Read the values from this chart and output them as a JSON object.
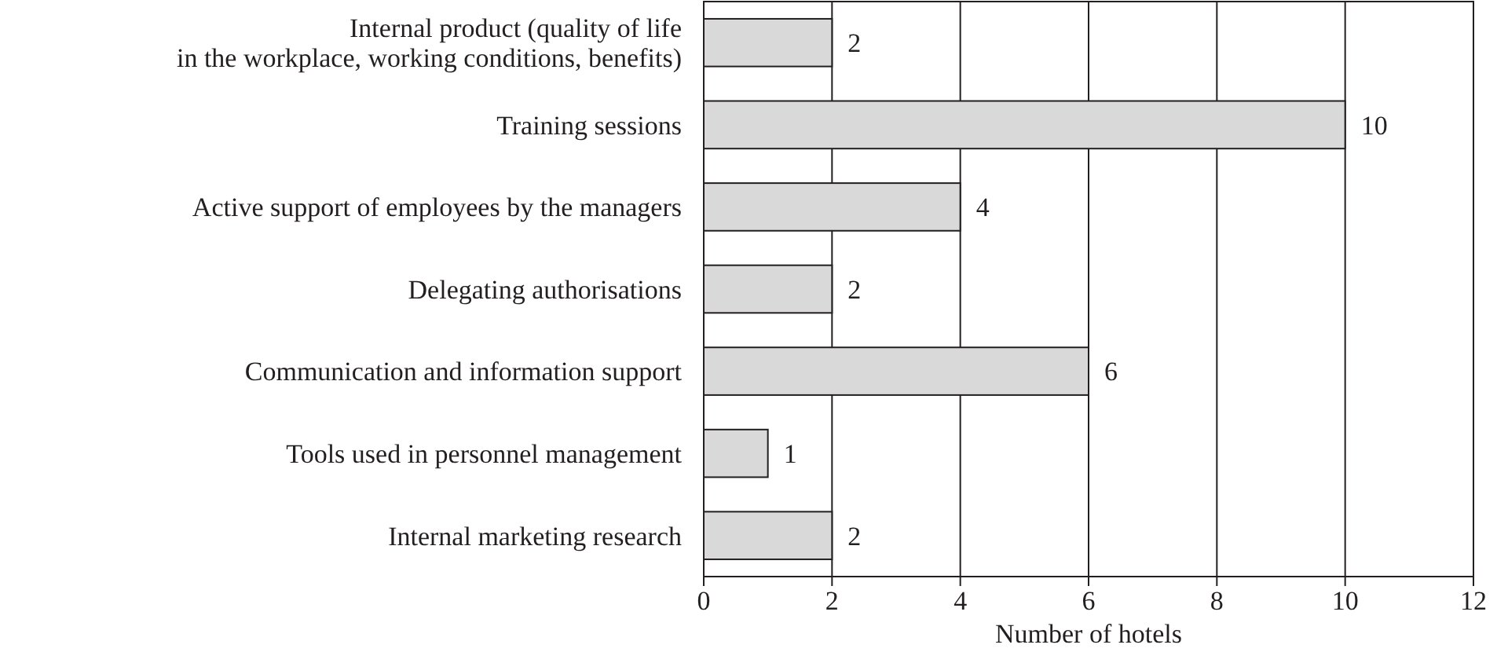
{
  "chart_data": {
    "type": "bar",
    "orientation": "horizontal",
    "xlabel": "Number of hotels",
    "categories": [
      "Internal product (quality of life\nin the workplace, working conditions, benefits)",
      "Training sessions",
      "Active support of employees by the managers",
      "Delegating authorisations",
      "Communication and information support",
      "Tools used in personnel management",
      "Internal marketing research"
    ],
    "values": [
      2,
      10,
      4,
      2,
      6,
      1,
      2
    ],
    "color": "#d9d9d9",
    "xlim": [
      0,
      12
    ],
    "xticks": [
      0,
      2,
      4,
      6,
      8,
      10,
      12
    ],
    "grid": "x",
    "data_labels": true
  }
}
